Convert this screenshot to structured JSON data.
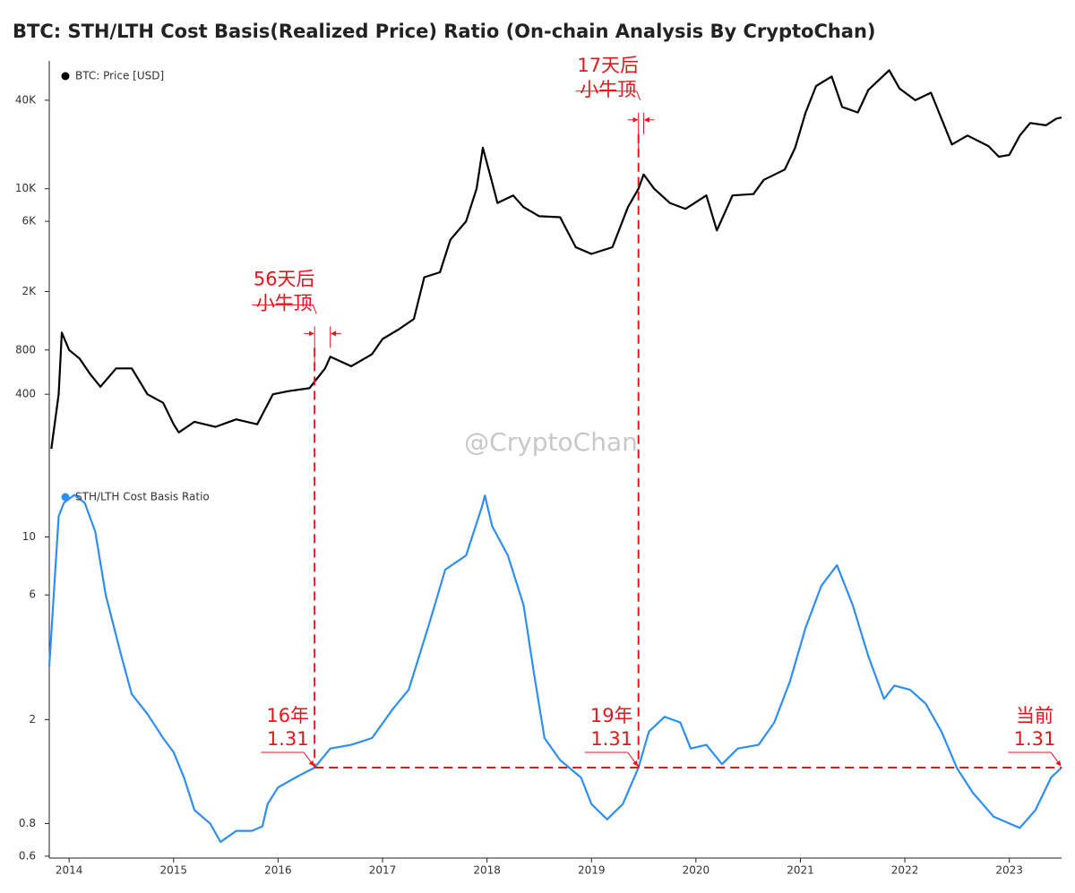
{
  "chart_data": [
    {
      "type": "line",
      "title": "BTC: STH/LTH Cost Basis(Realized Price) Ratio (On-chain Analysis By CryptoChan)",
      "log_y": true,
      "xlim": [
        2013.81,
        2023.5
      ],
      "ylim": [
        140,
        72000
      ],
      "yticks": [
        400,
        800,
        {
          "value": 2000,
          "label": "2K"
        },
        {
          "value": 6000,
          "label": "6K"
        },
        {
          "value": 10000,
          "label": "10K"
        },
        {
          "value": 40000,
          "label": "40K"
        }
      ],
      "x": [
        2013.83,
        2013.9,
        2013.93,
        2014.0,
        2014.1,
        2014.2,
        2014.3,
        2014.45,
        2014.6,
        2014.75,
        2014.9,
        2015.0,
        2015.05,
        2015.2,
        2015.4,
        2015.6,
        2015.8,
        2015.95,
        2016.1,
        2016.3,
        2016.45,
        2016.5,
        2016.7,
        2016.9,
        2017.0,
        2017.15,
        2017.3,
        2017.4,
        2017.55,
        2017.65,
        2017.8,
        2017.9,
        2017.96,
        2018.05,
        2018.1,
        2018.25,
        2018.35,
        2018.5,
        2018.7,
        2018.85,
        2019.0,
        2019.2,
        2019.35,
        2019.45,
        2019.5,
        2019.6,
        2019.75,
        2019.9,
        2020.1,
        2020.2,
        2020.35,
        2020.55,
        2020.65,
        2020.85,
        2020.95,
        2021.05,
        2021.15,
        2021.3,
        2021.4,
        2021.55,
        2021.65,
        2021.85,
        2021.95,
        2022.1,
        2022.25,
        2022.35,
        2022.45,
        2022.6,
        2022.8,
        2022.9,
        2023.0,
        2023.1,
        2023.2,
        2023.35,
        2023.45,
        2023.5
      ],
      "series": [
        {
          "name": "BTC: Price [USD]",
          "color": "#000000",
          "values": [
            170,
            400,
            1050,
            800,
            700,
            550,
            450,
            600,
            600,
            400,
            350,
            250,
            220,
            260,
            240,
            270,
            250,
            400,
            420,
            440,
            600,
            720,
            620,
            750,
            950,
            1100,
            1300,
            2500,
            2700,
            4500,
            6000,
            10000,
            19000,
            11000,
            8000,
            9000,
            7500,
            6500,
            6400,
            4000,
            3600,
            4000,
            7500,
            10000,
            12500,
            10000,
            8000,
            7300,
            9000,
            5200,
            9000,
            9200,
            11500,
            13500,
            19000,
            33000,
            50000,
            58000,
            36000,
            33000,
            47000,
            64000,
            48000,
            40000,
            45000,
            30000,
            20000,
            23000,
            19500,
            16500,
            17000,
            23000,
            28000,
            27000,
            30000,
            30500
          ]
        }
      ],
      "annotations": [
        {
          "lines": [
            "56天后",
            "小牛顶"
          ],
          "x": [
            2016.35,
            2016.5
          ]
        },
        {
          "lines": [
            "17天后",
            "小牛顶"
          ],
          "x": [
            2019.45,
            2019.5
          ]
        }
      ]
    },
    {
      "type": "line",
      "log_y": true,
      "xlim": [
        2013.81,
        2023.5
      ],
      "ylim": [
        0.59,
        16
      ],
      "yticks": [
        0.6,
        0.8,
        2,
        6,
        10
      ],
      "xticks": [
        2014,
        2015,
        2016,
        2017,
        2018,
        2019,
        2020,
        2021,
        2022,
        2023
      ],
      "x": [
        2013.81,
        2013.9,
        2013.95,
        2014.05,
        2014.15,
        2014.25,
        2014.35,
        2014.5,
        2014.6,
        2014.75,
        2014.9,
        2015.0,
        2015.1,
        2015.2,
        2015.35,
        2015.45,
        2015.6,
        2015.75,
        2015.85,
        2015.9,
        2016.0,
        2016.2,
        2016.35,
        2016.5,
        2016.7,
        2016.9,
        2017.1,
        2017.25,
        2017.45,
        2017.6,
        2017.8,
        2017.95,
        2017.98,
        2018.05,
        2018.2,
        2018.35,
        2018.45,
        2018.55,
        2018.7,
        2018.9,
        2019.0,
        2019.15,
        2019.3,
        2019.45,
        2019.55,
        2019.7,
        2019.85,
        2019.95,
        2020.1,
        2020.25,
        2020.4,
        2020.6,
        2020.75,
        2020.9,
        2021.05,
        2021.2,
        2021.35,
        2021.5,
        2021.65,
        2021.8,
        2021.9,
        2022.05,
        2022.2,
        2022.35,
        2022.5,
        2022.65,
        2022.85,
        2023.0,
        2023.1,
        2023.25,
        2023.4,
        2023.5
      ],
      "series": [
        {
          "name": "STH/LTH Cost Basis Ratio",
          "color": "#2e8ff0",
          "values": [
            3.2,
            12,
            13.5,
            14.5,
            13.5,
            10.5,
            6,
            3.5,
            2.5,
            2.1,
            1.7,
            1.5,
            1.2,
            0.9,
            0.8,
            0.68,
            0.75,
            0.75,
            0.78,
            0.95,
            1.1,
            1.22,
            1.31,
            1.55,
            1.6,
            1.7,
            2.2,
            2.6,
            4.7,
            7.5,
            8.5,
            13,
            14.4,
            11,
            8.5,
            5.5,
            3,
            1.7,
            1.4,
            1.2,
            0.95,
            0.83,
            0.95,
            1.31,
            1.8,
            2.05,
            1.95,
            1.55,
            1.6,
            1.35,
            1.55,
            1.6,
            1.95,
            2.8,
            4.5,
            6.5,
            7.8,
            5.5,
            3.5,
            2.4,
            2.7,
            2.6,
            2.3,
            1.8,
            1.3,
            1.05,
            0.85,
            0.8,
            0.77,
            0.9,
            1.2,
            1.31
          ]
        }
      ],
      "annotations": [
        {
          "label": "16年",
          "value": 1.31,
          "x": 2016.35
        },
        {
          "label": "19年",
          "value": 1.31,
          "x": 2019.45
        },
        {
          "label": "当前",
          "value": 1.31,
          "x": 2023.5
        }
      ]
    }
  ],
  "watermark": "@CryptoChan"
}
